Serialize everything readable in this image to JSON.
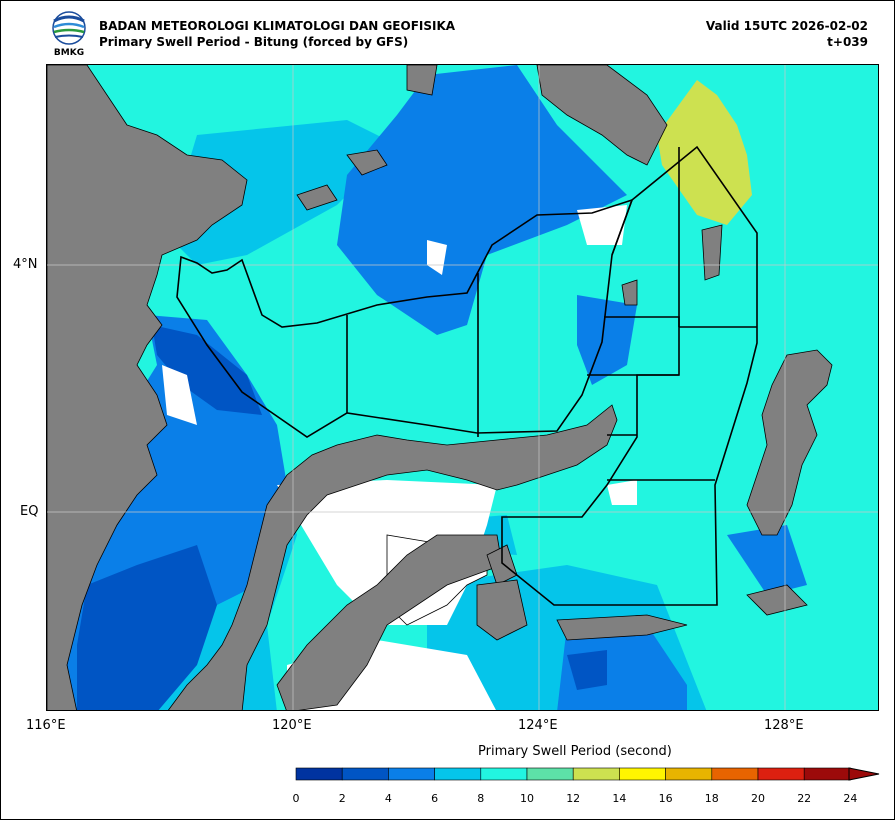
{
  "header": {
    "agency": "BADAN METEOROLOGI KLIMATOLOGI DAN GEOFISIKA",
    "subtitle": "Primary Swell Period - Bitung (forced by GFS)",
    "valid": "Valid 15UTC 2026-02-02",
    "lead": "t+039",
    "logo_text": "BMKG"
  },
  "axes": {
    "y_labels": [
      "4°N",
      "EQ"
    ],
    "x_labels": [
      "116°E",
      "120°E",
      "124°E",
      "128°E"
    ]
  },
  "colorbar": {
    "title": "Primary Swell Period (second)",
    "ticks": [
      "0",
      "2",
      "4",
      "6",
      "8",
      "10",
      "12",
      "14",
      "16",
      "18",
      "20",
      "22",
      "24"
    ],
    "colors": [
      "#0033a0",
      "#0055c4",
      "#0a7fe8",
      "#05c5ea",
      "#22f5e0",
      "#5de1a8",
      "#cde150",
      "#fff500",
      "#e8b400",
      "#e86400",
      "#dc2010",
      "#9c0a0a"
    ]
  },
  "legend_colors": {
    "land": "#808080",
    "sea_4_6": "#0a7fe8",
    "sea_2_4": "#0055c4",
    "sea_6_8": "#05c5ea",
    "sea_8_10": "#22f5e0",
    "sea_12_14": "#cde150",
    "nodata": "#ffffff"
  }
}
